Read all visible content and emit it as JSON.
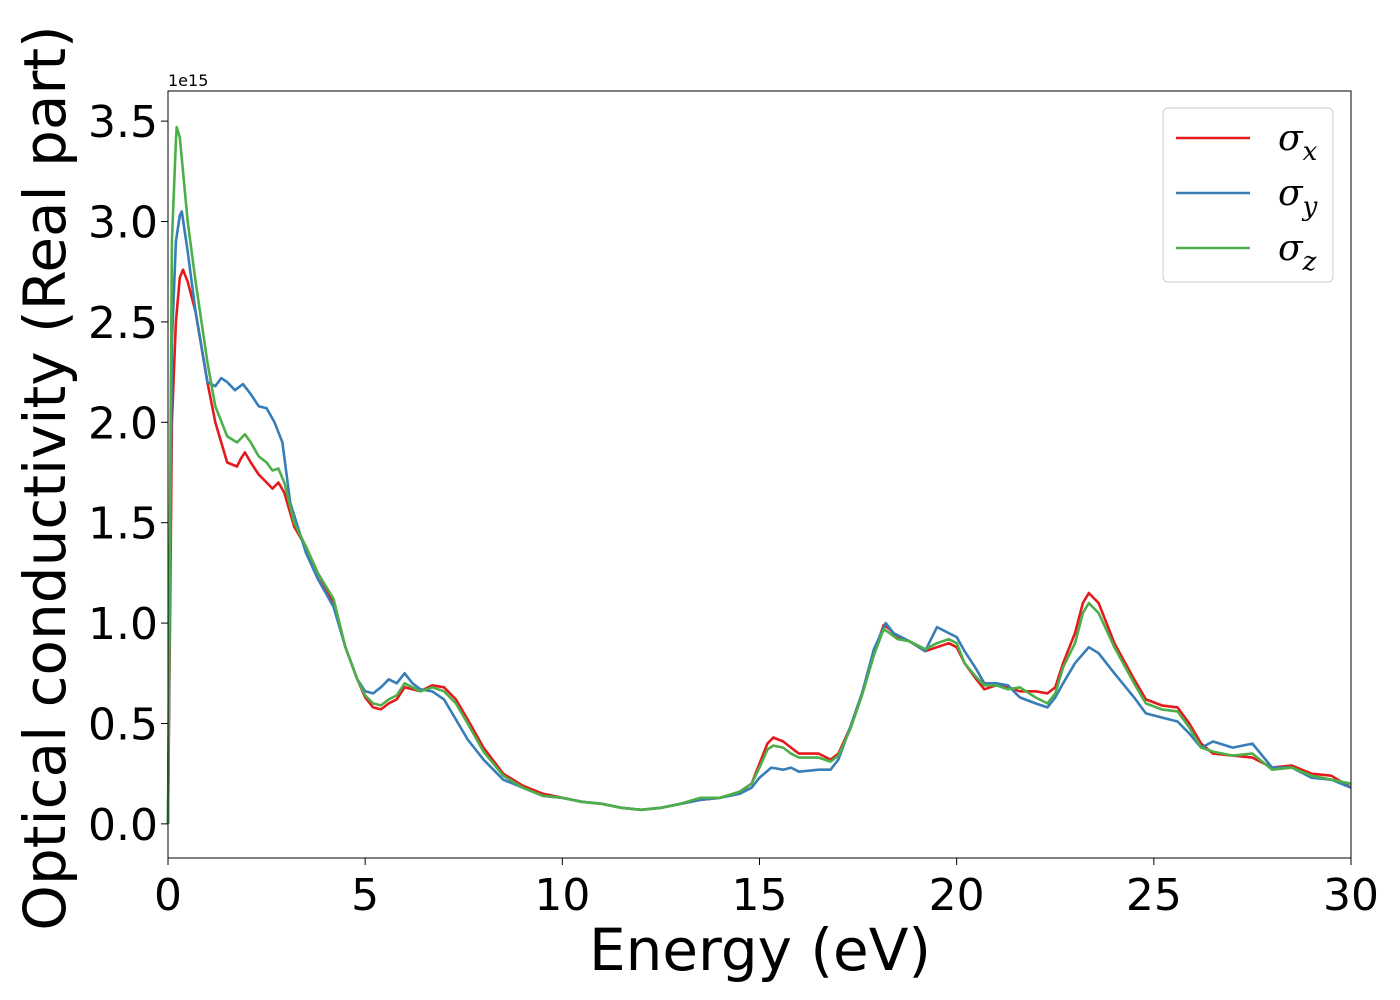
{
  "chart_data": {
    "type": "line",
    "xlabel": "Energy (eV)",
    "ylabel": "Optical conductivity (Real part)",
    "y_offset_label": "1e15",
    "xlim": [
      0,
      30
    ],
    "ylim": [
      -0.17,
      3.65
    ],
    "x_ticks": [
      0,
      5,
      10,
      15,
      20,
      25,
      30
    ],
    "x_tick_labels": [
      "0",
      "5",
      "10",
      "15",
      "20",
      "25",
      "30"
    ],
    "y_ticks": [
      0.0,
      0.5,
      1.0,
      1.5,
      2.0,
      2.5,
      3.0,
      3.5
    ],
    "y_tick_labels": [
      "0.0",
      "0.5",
      "1.0",
      "1.5",
      "2.0",
      "2.5",
      "3.0",
      "3.5"
    ],
    "grid": false,
    "legend_position": "top-right",
    "series": [
      {
        "name": "σ",
        "subscript": "x",
        "color": "#e41a1c",
        "points": [
          [
            0,
            0
          ],
          [
            0.05,
            1.0
          ],
          [
            0.1,
            2.0
          ],
          [
            0.2,
            2.5
          ],
          [
            0.3,
            2.72
          ],
          [
            0.38,
            2.76
          ],
          [
            0.5,
            2.7
          ],
          [
            0.7,
            2.55
          ],
          [
            1.0,
            2.2
          ],
          [
            1.2,
            2.0
          ],
          [
            1.5,
            1.8
          ],
          [
            1.75,
            1.78
          ],
          [
            1.85,
            1.82
          ],
          [
            1.95,
            1.85
          ],
          [
            2.1,
            1.8
          ],
          [
            2.3,
            1.74
          ],
          [
            2.5,
            1.7
          ],
          [
            2.65,
            1.67
          ],
          [
            2.8,
            1.7
          ],
          [
            2.95,
            1.65
          ],
          [
            3.2,
            1.48
          ],
          [
            3.5,
            1.38
          ],
          [
            3.8,
            1.25
          ],
          [
            4.2,
            1.1
          ],
          [
            4.5,
            0.88
          ],
          [
            4.8,
            0.72
          ],
          [
            5.0,
            0.63
          ],
          [
            5.2,
            0.58
          ],
          [
            5.4,
            0.57
          ],
          [
            5.6,
            0.6
          ],
          [
            5.8,
            0.62
          ],
          [
            6.0,
            0.68
          ],
          [
            6.2,
            0.67
          ],
          [
            6.4,
            0.66
          ],
          [
            6.7,
            0.69
          ],
          [
            7.0,
            0.68
          ],
          [
            7.3,
            0.62
          ],
          [
            7.6,
            0.52
          ],
          [
            8.0,
            0.38
          ],
          [
            8.5,
            0.25
          ],
          [
            9.0,
            0.19
          ],
          [
            9.5,
            0.15
          ],
          [
            10,
            0.13
          ],
          [
            10.5,
            0.11
          ],
          [
            11,
            0.1
          ],
          [
            11.5,
            0.08
          ],
          [
            12,
            0.07
          ],
          [
            12.5,
            0.08
          ],
          [
            13,
            0.1
          ],
          [
            13.5,
            0.12
          ],
          [
            14,
            0.13
          ],
          [
            14.5,
            0.16
          ],
          [
            14.8,
            0.2
          ],
          [
            15.0,
            0.3
          ],
          [
            15.2,
            0.4
          ],
          [
            15.35,
            0.43
          ],
          [
            15.6,
            0.41
          ],
          [
            15.8,
            0.38
          ],
          [
            16.0,
            0.35
          ],
          [
            16.5,
            0.35
          ],
          [
            16.8,
            0.32
          ],
          [
            17.0,
            0.35
          ],
          [
            17.3,
            0.48
          ],
          [
            17.6,
            0.65
          ],
          [
            17.9,
            0.85
          ],
          [
            18.15,
            0.99
          ],
          [
            18.3,
            0.97
          ],
          [
            18.5,
            0.93
          ],
          [
            18.8,
            0.91
          ],
          [
            19.2,
            0.86
          ],
          [
            19.5,
            0.88
          ],
          [
            19.8,
            0.9
          ],
          [
            20.0,
            0.88
          ],
          [
            20.2,
            0.8
          ],
          [
            20.5,
            0.72
          ],
          [
            20.7,
            0.67
          ],
          [
            21.0,
            0.69
          ],
          [
            21.3,
            0.68
          ],
          [
            21.6,
            0.66
          ],
          [
            22.0,
            0.66
          ],
          [
            22.3,
            0.65
          ],
          [
            22.5,
            0.68
          ],
          [
            22.7,
            0.8
          ],
          [
            23.0,
            0.95
          ],
          [
            23.2,
            1.1
          ],
          [
            23.35,
            1.15
          ],
          [
            23.6,
            1.1
          ],
          [
            24.0,
            0.9
          ],
          [
            24.5,
            0.72
          ],
          [
            24.8,
            0.62
          ],
          [
            25.2,
            0.59
          ],
          [
            25.6,
            0.58
          ],
          [
            25.9,
            0.5
          ],
          [
            26.2,
            0.4
          ],
          [
            26.5,
            0.35
          ],
          [
            27.0,
            0.34
          ],
          [
            27.5,
            0.33
          ],
          [
            28.0,
            0.28
          ],
          [
            28.5,
            0.29
          ],
          [
            29.0,
            0.25
          ],
          [
            29.5,
            0.24
          ],
          [
            30,
            0.18
          ]
        ]
      },
      {
        "name": "σ",
        "subscript": "y",
        "color": "#377eb8",
        "points": [
          [
            0,
            0
          ],
          [
            0.05,
            1.2
          ],
          [
            0.1,
            2.4
          ],
          [
            0.2,
            2.9
          ],
          [
            0.3,
            3.03
          ],
          [
            0.35,
            3.05
          ],
          [
            0.5,
            2.85
          ],
          [
            0.7,
            2.55
          ],
          [
            1.0,
            2.2
          ],
          [
            1.2,
            2.18
          ],
          [
            1.35,
            2.22
          ],
          [
            1.5,
            2.2
          ],
          [
            1.7,
            2.16
          ],
          [
            1.9,
            2.19
          ],
          [
            2.1,
            2.14
          ],
          [
            2.3,
            2.08
          ],
          [
            2.5,
            2.07
          ],
          [
            2.7,
            2.0
          ],
          [
            2.9,
            1.9
          ],
          [
            3.1,
            1.6
          ],
          [
            3.5,
            1.35
          ],
          [
            3.8,
            1.22
          ],
          [
            4.2,
            1.08
          ],
          [
            4.5,
            0.88
          ],
          [
            4.8,
            0.72
          ],
          [
            5.0,
            0.66
          ],
          [
            5.2,
            0.65
          ],
          [
            5.4,
            0.68
          ],
          [
            5.6,
            0.72
          ],
          [
            5.8,
            0.7
          ],
          [
            6.0,
            0.75
          ],
          [
            6.2,
            0.7
          ],
          [
            6.4,
            0.67
          ],
          [
            6.7,
            0.66
          ],
          [
            7.0,
            0.62
          ],
          [
            7.3,
            0.52
          ],
          [
            7.6,
            0.42
          ],
          [
            8.0,
            0.32
          ],
          [
            8.5,
            0.22
          ],
          [
            9.0,
            0.18
          ],
          [
            9.5,
            0.14
          ],
          [
            10,
            0.13
          ],
          [
            10.5,
            0.11
          ],
          [
            11,
            0.1
          ],
          [
            11.5,
            0.08
          ],
          [
            12,
            0.07
          ],
          [
            12.5,
            0.08
          ],
          [
            13,
            0.1
          ],
          [
            13.5,
            0.12
          ],
          [
            14,
            0.13
          ],
          [
            14.5,
            0.15
          ],
          [
            14.8,
            0.18
          ],
          [
            15.0,
            0.23
          ],
          [
            15.3,
            0.28
          ],
          [
            15.6,
            0.27
          ],
          [
            15.8,
            0.28
          ],
          [
            16.0,
            0.26
          ],
          [
            16.5,
            0.27
          ],
          [
            16.8,
            0.27
          ],
          [
            17.0,
            0.32
          ],
          [
            17.3,
            0.48
          ],
          [
            17.6,
            0.65
          ],
          [
            17.9,
            0.87
          ],
          [
            18.2,
            1.0
          ],
          [
            18.4,
            0.95
          ],
          [
            18.8,
            0.91
          ],
          [
            19.2,
            0.86
          ],
          [
            19.5,
            0.98
          ],
          [
            19.8,
            0.95
          ],
          [
            20.0,
            0.93
          ],
          [
            20.2,
            0.86
          ],
          [
            20.5,
            0.77
          ],
          [
            20.7,
            0.7
          ],
          [
            21.0,
            0.7
          ],
          [
            21.3,
            0.69
          ],
          [
            21.6,
            0.63
          ],
          [
            22.0,
            0.6
          ],
          [
            22.3,
            0.58
          ],
          [
            22.5,
            0.63
          ],
          [
            22.7,
            0.7
          ],
          [
            23.0,
            0.8
          ],
          [
            23.35,
            0.88
          ],
          [
            23.6,
            0.85
          ],
          [
            24.0,
            0.75
          ],
          [
            24.5,
            0.63
          ],
          [
            24.8,
            0.55
          ],
          [
            25.2,
            0.53
          ],
          [
            25.6,
            0.51
          ],
          [
            25.9,
            0.45
          ],
          [
            26.2,
            0.38
          ],
          [
            26.5,
            0.41
          ],
          [
            27.0,
            0.38
          ],
          [
            27.5,
            0.4
          ],
          [
            28.0,
            0.28
          ],
          [
            28.5,
            0.28
          ],
          [
            29.0,
            0.23
          ],
          [
            29.5,
            0.22
          ],
          [
            30,
            0.18
          ]
        ]
      },
      {
        "name": "σ",
        "subscript": "z",
        "color": "#4daf4a",
        "points": [
          [
            0,
            0
          ],
          [
            0.05,
            1.5
          ],
          [
            0.1,
            2.9
          ],
          [
            0.2,
            3.4
          ],
          [
            0.22,
            3.47
          ],
          [
            0.3,
            3.42
          ],
          [
            0.5,
            3.0
          ],
          [
            0.7,
            2.7
          ],
          [
            1.0,
            2.3
          ],
          [
            1.2,
            2.08
          ],
          [
            1.5,
            1.93
          ],
          [
            1.75,
            1.9
          ],
          [
            1.85,
            1.92
          ],
          [
            1.95,
            1.94
          ],
          [
            2.1,
            1.9
          ],
          [
            2.3,
            1.83
          ],
          [
            2.5,
            1.8
          ],
          [
            2.65,
            1.76
          ],
          [
            2.8,
            1.77
          ],
          [
            2.95,
            1.7
          ],
          [
            3.2,
            1.5
          ],
          [
            3.5,
            1.38
          ],
          [
            3.8,
            1.25
          ],
          [
            4.2,
            1.12
          ],
          [
            4.5,
            0.88
          ],
          [
            4.8,
            0.72
          ],
          [
            5.0,
            0.64
          ],
          [
            5.2,
            0.6
          ],
          [
            5.4,
            0.59
          ],
          [
            5.6,
            0.62
          ],
          [
            5.8,
            0.64
          ],
          [
            6.0,
            0.7
          ],
          [
            6.2,
            0.68
          ],
          [
            6.4,
            0.66
          ],
          [
            6.7,
            0.68
          ],
          [
            7.0,
            0.66
          ],
          [
            7.3,
            0.6
          ],
          [
            7.6,
            0.5
          ],
          [
            8.0,
            0.36
          ],
          [
            8.5,
            0.24
          ],
          [
            9.0,
            0.18
          ],
          [
            9.5,
            0.14
          ],
          [
            10,
            0.13
          ],
          [
            10.5,
            0.11
          ],
          [
            11,
            0.1
          ],
          [
            11.5,
            0.08
          ],
          [
            12,
            0.07
          ],
          [
            12.5,
            0.08
          ],
          [
            13,
            0.1
          ],
          [
            13.5,
            0.13
          ],
          [
            14,
            0.13
          ],
          [
            14.5,
            0.16
          ],
          [
            14.8,
            0.2
          ],
          [
            15.0,
            0.28
          ],
          [
            15.2,
            0.37
          ],
          [
            15.35,
            0.39
          ],
          [
            15.6,
            0.38
          ],
          [
            15.8,
            0.35
          ],
          [
            16.0,
            0.33
          ],
          [
            16.5,
            0.33
          ],
          [
            16.8,
            0.31
          ],
          [
            17.0,
            0.34
          ],
          [
            17.3,
            0.47
          ],
          [
            17.6,
            0.64
          ],
          [
            17.9,
            0.84
          ],
          [
            18.15,
            0.97
          ],
          [
            18.3,
            0.95
          ],
          [
            18.5,
            0.92
          ],
          [
            18.8,
            0.91
          ],
          [
            19.2,
            0.87
          ],
          [
            19.5,
            0.9
          ],
          [
            19.8,
            0.92
          ],
          [
            20.0,
            0.9
          ],
          [
            20.2,
            0.8
          ],
          [
            20.5,
            0.73
          ],
          [
            20.7,
            0.69
          ],
          [
            21.0,
            0.69
          ],
          [
            21.3,
            0.67
          ],
          [
            21.6,
            0.68
          ],
          [
            22.0,
            0.63
          ],
          [
            22.3,
            0.6
          ],
          [
            22.5,
            0.65
          ],
          [
            22.7,
            0.78
          ],
          [
            23.0,
            0.9
          ],
          [
            23.2,
            1.05
          ],
          [
            23.35,
            1.1
          ],
          [
            23.6,
            1.05
          ],
          [
            24.0,
            0.88
          ],
          [
            24.5,
            0.7
          ],
          [
            24.8,
            0.6
          ],
          [
            25.2,
            0.57
          ],
          [
            25.6,
            0.56
          ],
          [
            25.9,
            0.48
          ],
          [
            26.2,
            0.38
          ],
          [
            26.5,
            0.36
          ],
          [
            27.0,
            0.34
          ],
          [
            27.5,
            0.35
          ],
          [
            28.0,
            0.27
          ],
          [
            28.5,
            0.28
          ],
          [
            29.0,
            0.24
          ],
          [
            29.5,
            0.22
          ],
          [
            30,
            0.2
          ]
        ]
      }
    ]
  }
}
